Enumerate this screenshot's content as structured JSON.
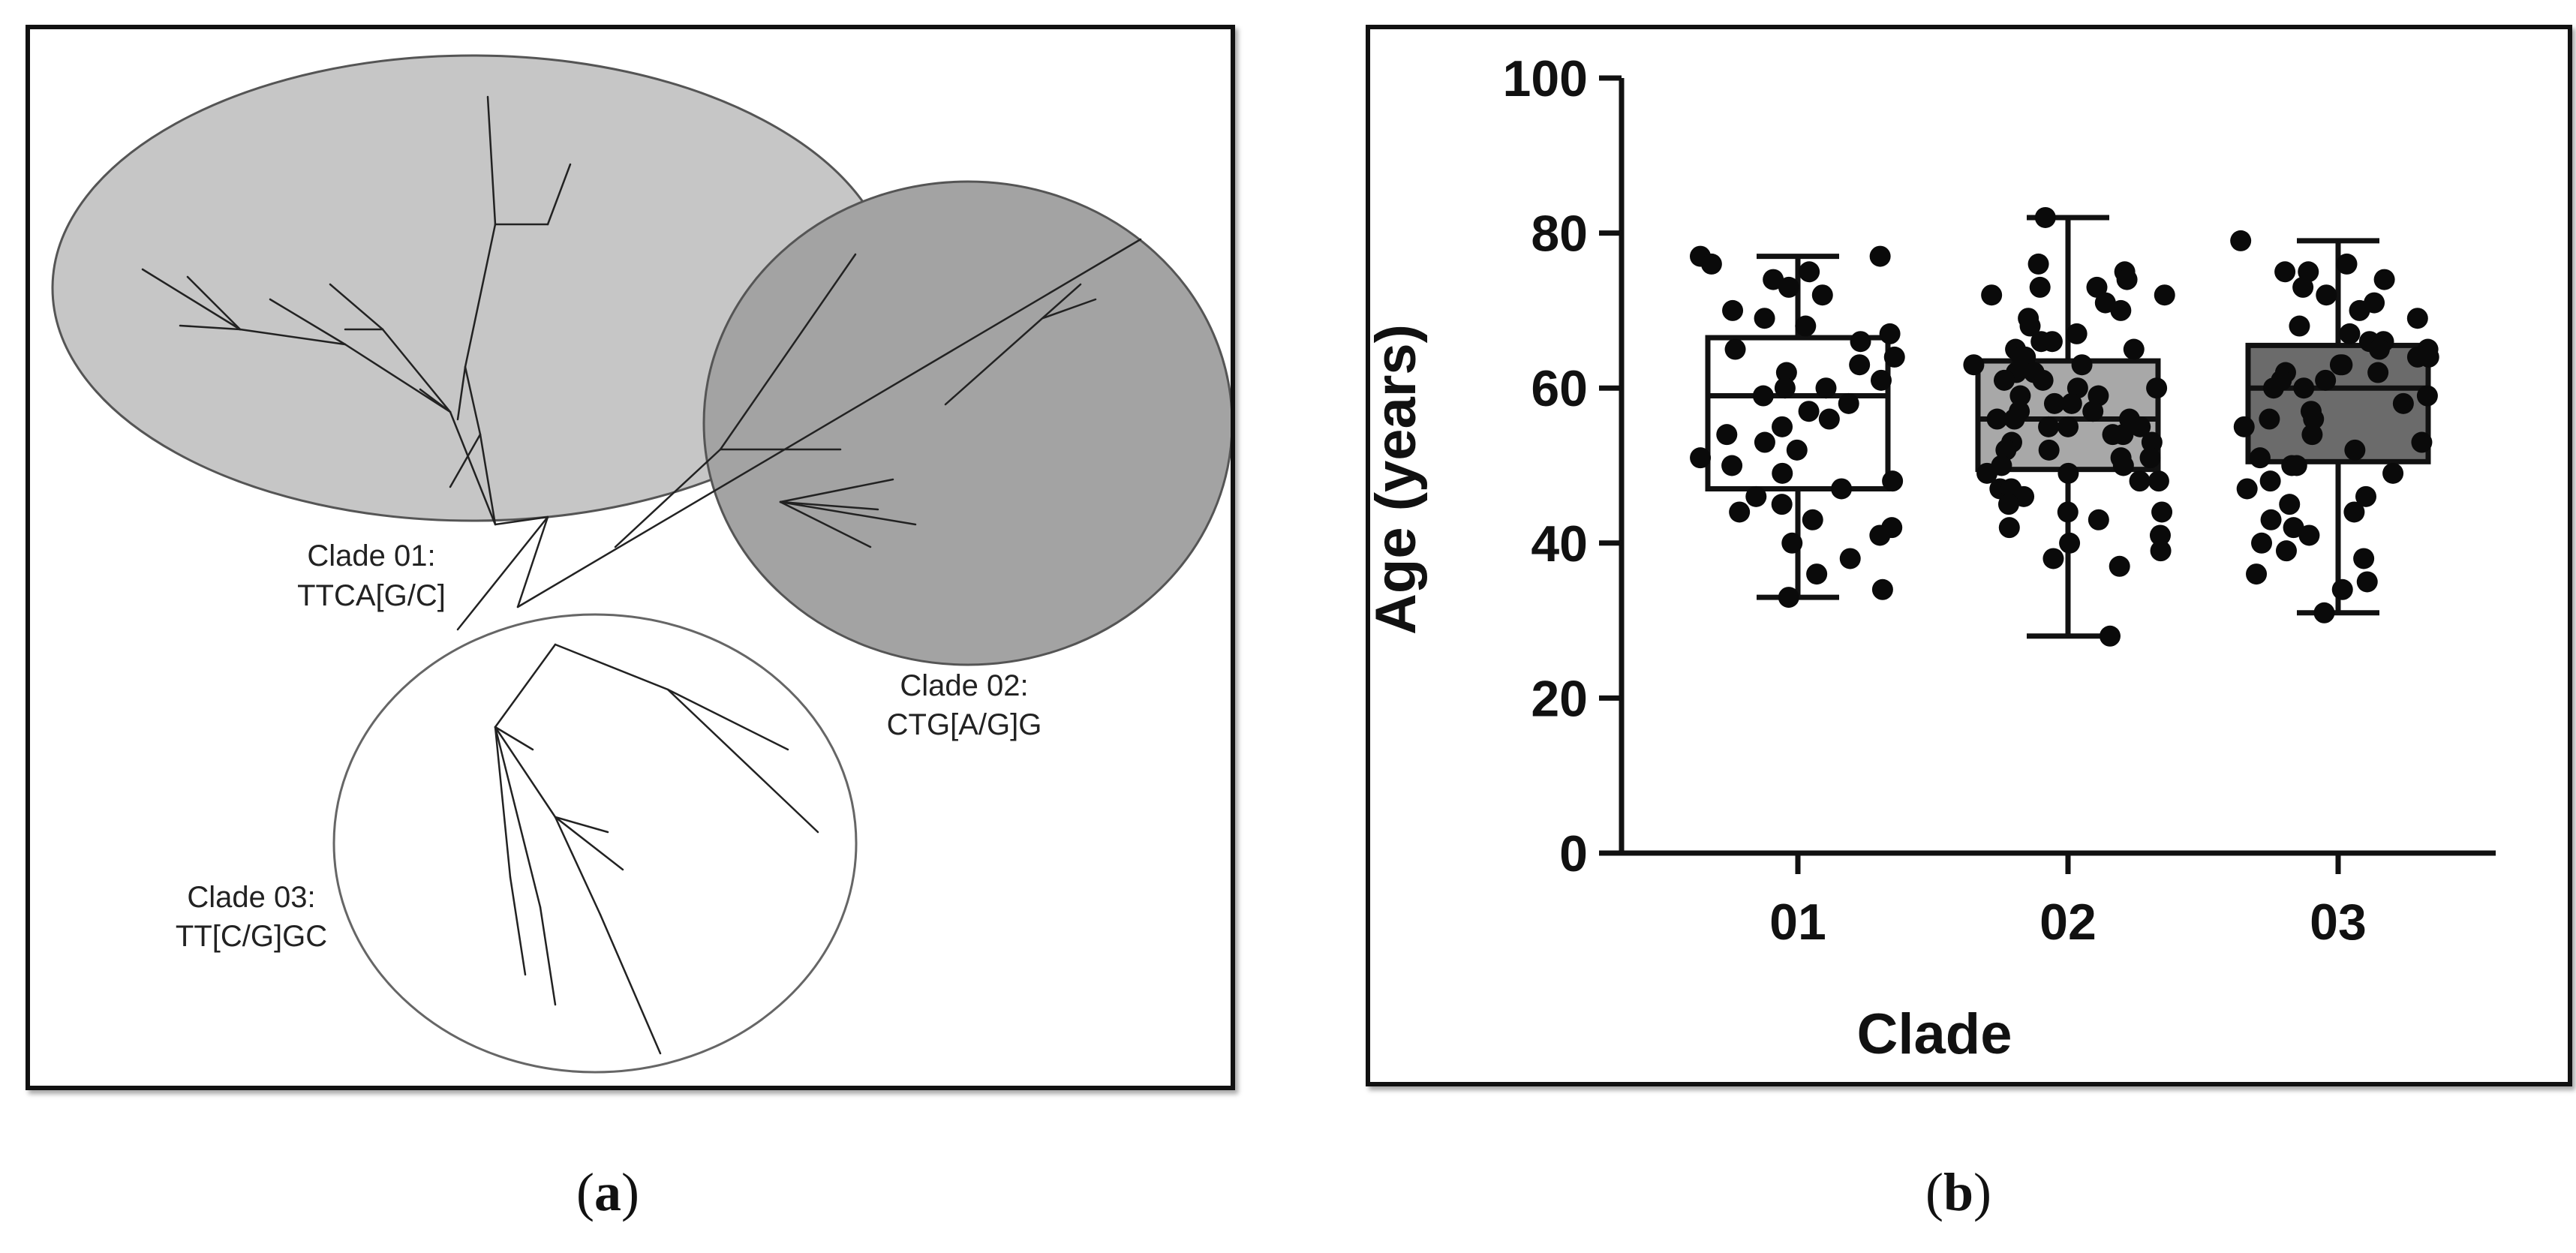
{
  "panels": {
    "a": {
      "caption_prefix": "(",
      "caption_letter": "a",
      "caption_suffix": ")",
      "clades": [
        {
          "line1": "Clade 01:",
          "line2": "TTCA[G/C]",
          "fill": "#c6c6c6"
        },
        {
          "line1": "Clade 02:",
          "line2": "CTG[A/G]G",
          "fill": "#a3a3a3"
        },
        {
          "line1": "Clade 03:",
          "line2": "TT[C/G]GC",
          "fill": "#ffffff"
        }
      ]
    },
    "b": {
      "caption_prefix": "(",
      "caption_letter": "b",
      "caption_suffix": ")"
    }
  },
  "chart_data": {
    "type": "box",
    "xlabel": "Clade",
    "ylabel": "Age (years)",
    "ylim": [
      0,
      100
    ],
    "yticks": [
      0,
      20,
      40,
      60,
      80,
      100
    ],
    "categories": [
      "01",
      "02",
      "03"
    ],
    "series": [
      {
        "category": "01",
        "fill": "#ffffff",
        "min": 33,
        "q1": 47,
        "median": 59,
        "q3": 66.5,
        "max": 77,
        "points": [
          77,
          77,
          76,
          75,
          74,
          73,
          72,
          70,
          69,
          68,
          67,
          66,
          65,
          64,
          63,
          62,
          61,
          60,
          60,
          59,
          58,
          57,
          56,
          55,
          54,
          53,
          52,
          51,
          50,
          49,
          48,
          47,
          46,
          45,
          44,
          43,
          42,
          41,
          40,
          38,
          36,
          34,
          33
        ]
      },
      {
        "category": "02",
        "fill": "#a8a8a8",
        "min": 28,
        "q1": 49.5,
        "median": 56,
        "q3": 63.5,
        "max": 82,
        "points": [
          82,
          76,
          75,
          74,
          73,
          73,
          72,
          72,
          71,
          70,
          69,
          68,
          67,
          66,
          66,
          65,
          65,
          64,
          64,
          63,
          63,
          62,
          62,
          61,
          61,
          60,
          60,
          59,
          59,
          58,
          58,
          57,
          57,
          56,
          56,
          56,
          55,
          55,
          55,
          54,
          54,
          53,
          53,
          52,
          52,
          51,
          51,
          50,
          50,
          49,
          49,
          48,
          48,
          47,
          47,
          46,
          45,
          44,
          44,
          43,
          42,
          41,
          40,
          39,
          38,
          37,
          28
        ]
      },
      {
        "category": "03",
        "fill": "#6b6b6b",
        "min": 31,
        "q1": 50.5,
        "median": 60,
        "q3": 65.5,
        "max": 79,
        "points": [
          79,
          76,
          75,
          75,
          74,
          73,
          72,
          71,
          70,
          69,
          68,
          67,
          66,
          66,
          65,
          65,
          64,
          64,
          63,
          63,
          62,
          62,
          61,
          61,
          60,
          60,
          59,
          58,
          57,
          56,
          56,
          55,
          54,
          53,
          52,
          51,
          50,
          50,
          49,
          48,
          47,
          46,
          45,
          44,
          43,
          42,
          41,
          40,
          39,
          38,
          36,
          35,
          34,
          31
        ]
      }
    ]
  }
}
